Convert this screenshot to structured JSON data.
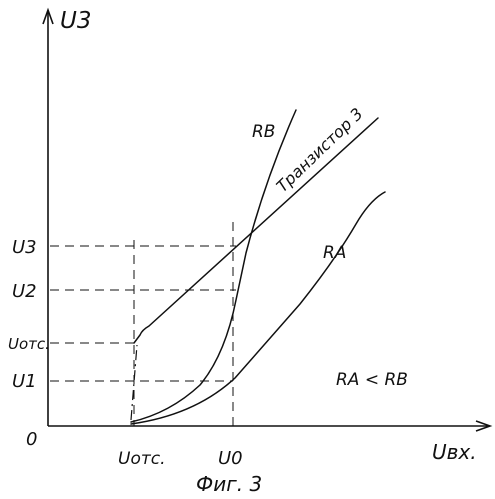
{
  "figure": {
    "caption": "Фиг. 3",
    "y_axis_label": "U3",
    "x_axis_label": "Uвх.",
    "origin_label": "0"
  },
  "y_ticks": [
    "U3",
    "U2",
    "Uотс.",
    "U1"
  ],
  "x_ticks": [
    "Uотс.",
    "U0"
  ],
  "curves": {
    "transistor": "Транзистор 3",
    "rb": "RB",
    "ra": "RA"
  },
  "relation": "RA < RB"
}
